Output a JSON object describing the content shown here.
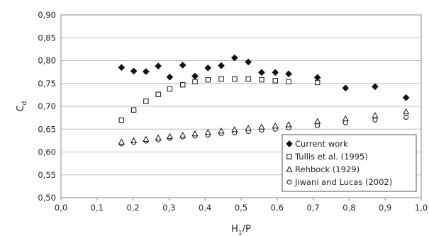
{
  "chart_data": {
    "type": "scatter",
    "xlabel_main": "H",
    "xlabel_sub": "1",
    "xlabel_rest": "/P",
    "ylabel_main": "C",
    "ylabel_sub": "d",
    "xlim": [
      0.0,
      1.0
    ],
    "ylim": [
      0.5,
      0.9
    ],
    "xticks": [
      "0,0",
      "0,1",
      "0,2",
      "0,3",
      "0,4",
      "0,5",
      "0,6",
      "0,7",
      "0,8",
      "0,9",
      "1,0"
    ],
    "yticks": [
      "0,50",
      "0,55",
      "0,60",
      "0,65",
      "0,70",
      "0,75",
      "0,80",
      "0,85",
      "0,90"
    ],
    "grid": "horizontal",
    "legend_position": "bottom-right",
    "series": [
      {
        "name": "Current work",
        "marker": "diamond-filled",
        "color": "#111111",
        "x": [
          0.168,
          0.202,
          0.236,
          0.27,
          0.302,
          0.338,
          0.372,
          0.408,
          0.445,
          0.482,
          0.52,
          0.557,
          0.595,
          0.632,
          0.712,
          0.79,
          0.872,
          0.958
        ],
        "y": [
          0.785,
          0.777,
          0.776,
          0.788,
          0.764,
          0.79,
          0.766,
          0.784,
          0.789,
          0.806,
          0.797,
          0.774,
          0.774,
          0.771,
          0.763,
          0.74,
          0.743,
          0.719
        ]
      },
      {
        "name": "Tullis et al. (1995)",
        "marker": "square-open",
        "color": "#111111",
        "x": [
          0.168,
          0.202,
          0.236,
          0.27,
          0.302,
          0.338,
          0.372,
          0.408,
          0.445,
          0.482,
          0.52,
          0.557,
          0.595,
          0.632,
          0.712
        ],
        "y": [
          0.67,
          0.692,
          0.711,
          0.726,
          0.738,
          0.747,
          0.754,
          0.758,
          0.76,
          0.76,
          0.76,
          0.758,
          0.756,
          0.754,
          0.752
        ]
      },
      {
        "name": "Rehbock (1929)",
        "marker": "triangle-open",
        "color": "#111111",
        "x": [
          0.168,
          0.202,
          0.236,
          0.27,
          0.302,
          0.338,
          0.372,
          0.408,
          0.445,
          0.482,
          0.52,
          0.557,
          0.595,
          0.632,
          0.712,
          0.79,
          0.872,
          0.958
        ],
        "y": [
          0.622,
          0.625,
          0.628,
          0.631,
          0.634,
          0.637,
          0.64,
          0.643,
          0.646,
          0.649,
          0.652,
          0.655,
          0.657,
          0.66,
          0.667,
          0.673,
          0.68,
          0.688
        ]
      },
      {
        "name": "Jiwani and Lucas (2002)",
        "marker": "circle-open",
        "color": "#111111",
        "x": [
          0.168,
          0.202,
          0.236,
          0.27,
          0.302,
          0.338,
          0.372,
          0.408,
          0.445,
          0.482,
          0.52,
          0.557,
          0.595,
          0.632,
          0.712,
          0.79,
          0.872,
          0.958
        ],
        "y": [
          0.618,
          0.621,
          0.624,
          0.627,
          0.63,
          0.633,
          0.635,
          0.637,
          0.64,
          0.642,
          0.645,
          0.648,
          0.65,
          0.653,
          0.658,
          0.664,
          0.67,
          0.676
        ]
      }
    ]
  }
}
